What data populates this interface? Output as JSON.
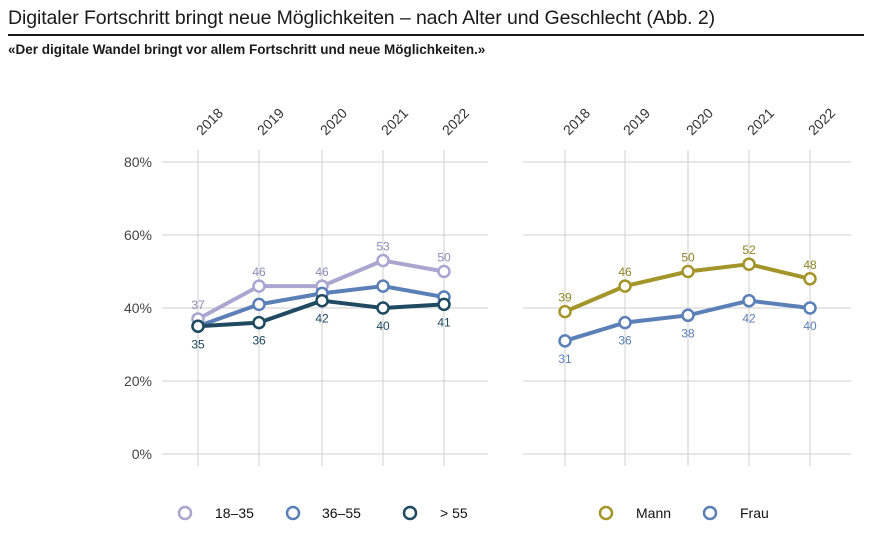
{
  "title": "Digitaler Fortschritt bringt neue Möglichkeiten – nach Alter und Geschlecht  (Abb. 2)",
  "subtitle": "«Der digitale Wandel bringt vor allem Fortschritt und neue Möglichkeiten.»",
  "chart_data": [
    {
      "type": "line",
      "title": "nach Alter",
      "x": [
        "2018",
        "2019",
        "2020",
        "2021",
        "2022"
      ],
      "ylim": [
        0,
        80
      ],
      "yticks": [
        "0%",
        "20%",
        "40%",
        "60%",
        "80%"
      ],
      "grid": true,
      "legend_position": "bottom",
      "series": [
        {
          "name": "18–35",
          "values": [
            37,
            46,
            46,
            53,
            50
          ],
          "color": "#a9a6d0",
          "label_pos": "above",
          "label_color": "#8e8bb8"
        },
        {
          "name": "36–55",
          "values": [
            35,
            41,
            44,
            46,
            43
          ],
          "color": "#5b7fb7",
          "label_pos": "none",
          "label_color": "#5b7fb7"
        },
        {
          "name": "> 55",
          "values": [
            35,
            36,
            42,
            40,
            41
          ],
          "color": "#1f4a62",
          "label_pos": "below",
          "label_color": "#1f4a62"
        }
      ]
    },
    {
      "type": "line",
      "title": "nach Geschlecht",
      "x": [
        "2018",
        "2019",
        "2020",
        "2021",
        "2022"
      ],
      "ylim": [
        0,
        80
      ],
      "grid": true,
      "legend_position": "bottom",
      "series": [
        {
          "name": "Mann",
          "values": [
            39,
            46,
            50,
            52,
            48
          ],
          "color": "#a3952a",
          "label_pos": "above",
          "label_color": "#8f8324"
        },
        {
          "name": "Frau",
          "values": [
            31,
            36,
            38,
            42,
            40
          ],
          "color": "#5b7fb7",
          "label_pos": "below",
          "label_color": "#5b7fb7"
        }
      ]
    }
  ]
}
